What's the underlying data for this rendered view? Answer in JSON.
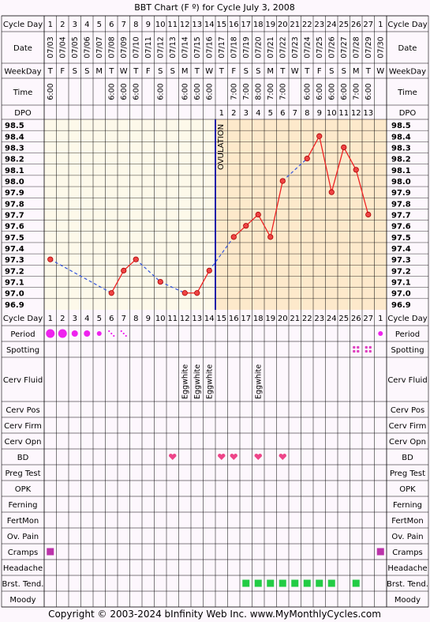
{
  "title": "BBT Chart (F º) for Cycle July 3, 2008",
  "footer": "Copyright © 2003-2024 bInfinity Web Inc.     www.MyMonthlyCycles.com",
  "row_labels": {
    "cycle_day": "Cycle Day",
    "date": "Date",
    "weekday": "WeekDay",
    "time": "Time",
    "dpo": "DPO",
    "period": "Period",
    "spotting": "Spotting",
    "cerv_fluid": "Cerv Fluid",
    "cerv_pos": "Cerv Pos",
    "cerv_firm": "Cerv Firm",
    "cerv_opn": "Cerv Opn",
    "bd": "BD",
    "preg_test": "Preg Test",
    "opk": "OPK",
    "ferning": "Ferning",
    "fertmon": "FertMon",
    "ov_pain": "Ov. Pain",
    "cramps": "Cramps",
    "headache": "Headache",
    "brst_tend": "Brst. Tend.",
    "moody": "Moody"
  },
  "ovulation_label": "OVULATION",
  "colors": {
    "background": "#fdf7fd",
    "grid": "#000000",
    "pre_ovulation": "#fdf9ea",
    "post_ovulation": "#fde9cb",
    "temp_line": "#ee2222",
    "temp_dot": "#ee4444",
    "missing_line": "#3355dd",
    "ovulation_line": "#1a1aa8",
    "period": "#ee22ee",
    "spotting": "#e040c0",
    "bd_heart": "#ee4488",
    "cramps": "#bb33aa",
    "brst_tend": "#22cc44"
  },
  "chart_data": {
    "type": "line",
    "title": "BBT Chart (F º) for Cycle July 3, 2008",
    "cycle_days": [
      "1",
      "2",
      "3",
      "4",
      "5",
      "6",
      "7",
      "8",
      "9",
      "10",
      "11",
      "12",
      "13",
      "14",
      "15",
      "16",
      "17",
      "18",
      "19",
      "20",
      "21",
      "22",
      "23",
      "24",
      "25",
      "26",
      "27",
      "1"
    ],
    "dates": [
      "07/03",
      "07/04",
      "07/05",
      "07/06",
      "07/07",
      "07/08",
      "07/09",
      "07/10",
      "07/11",
      "07/12",
      "07/13",
      "07/14",
      "07/15",
      "07/16",
      "07/17",
      "07/18",
      "07/19",
      "07/20",
      "07/21",
      "07/22",
      "07/23",
      "07/24",
      "07/25",
      "07/26",
      "07/27",
      "07/28",
      "07/29",
      "07/30"
    ],
    "weekdays": [
      "T",
      "F",
      "S",
      "S",
      "M",
      "T",
      "W",
      "T",
      "F",
      "S",
      "S",
      "M",
      "T",
      "W",
      "T",
      "F",
      "S",
      "S",
      "M",
      "T",
      "W",
      "T",
      "F",
      "S",
      "S",
      "M",
      "T",
      "W"
    ],
    "times": [
      "6:00",
      "",
      "",
      "",
      "",
      "6:00",
      "6:00",
      "6:00",
      "",
      "6:00",
      "",
      "6:00",
      "6:00",
      "6:00",
      "",
      "7:00",
      "7:00",
      "8:00",
      "7:00",
      "7:00",
      "",
      "6:00",
      "6:00",
      "6:00",
      "6:00",
      "7:00",
      "6:00",
      ""
    ],
    "dpo": [
      "",
      "",
      "",
      "",
      "",
      "",
      "",
      "",
      "",
      "",
      "",
      "",
      "",
      "",
      "1",
      "2",
      "3",
      "4",
      "5",
      "6",
      "7",
      "8",
      "9",
      "10",
      "11",
      "12",
      "13",
      ""
    ],
    "temps": [
      97.3,
      null,
      null,
      null,
      null,
      97.0,
      97.2,
      97.3,
      null,
      97.1,
      null,
      97.0,
      97.0,
      97.2,
      null,
      97.5,
      97.6,
      97.7,
      97.5,
      98.0,
      null,
      98.2,
      98.4,
      97.9,
      98.3,
      98.1,
      97.7,
      null
    ],
    "y_ticks": [
      "98.5",
      "98.4",
      "98.3",
      "98.2",
      "98.1",
      "98.0",
      "97.9",
      "97.8",
      "97.7",
      "97.6",
      "97.5",
      "97.4",
      "97.3",
      "97.2",
      "97.1",
      "97.0",
      "96.9"
    ],
    "ylim": [
      96.9,
      98.5
    ],
    "ovulation_day_index": 13,
    "grid": true
  },
  "observations": {
    "period": [
      "heavy",
      "heavy",
      "medium",
      "medium",
      "light",
      "spotting",
      "spotting",
      "",
      "",
      "",
      "",
      "",
      "",
      "",
      "",
      "",
      "",
      "",
      "",
      "",
      "",
      "",
      "",
      "",
      "",
      "",
      "",
      "light"
    ],
    "spotting": [
      26,
      27
    ],
    "cerv_fluid": [
      {
        "day": 12,
        "text": "Eggwhite"
      },
      {
        "day": 13,
        "text": "Eggwhite"
      },
      {
        "day": 14,
        "text": "Eggwhite"
      },
      {
        "day": 18,
        "text": "Eggwhite"
      }
    ],
    "bd": [
      11,
      15,
      16,
      18,
      20
    ],
    "cramps": [
      1,
      28
    ],
    "brst_tend": [
      17,
      18,
      19,
      20,
      21,
      22,
      23,
      24,
      26
    ]
  }
}
